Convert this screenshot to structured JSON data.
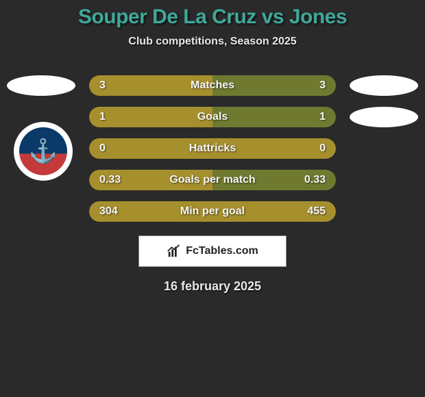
{
  "title": "Souper De La Cruz vs Jones",
  "subtitle": "Club competitions, Season 2025",
  "date": "16 february 2025",
  "brand": {
    "label": "FcTables.com"
  },
  "colors": {
    "player_left_bar": "#a68f2d",
    "player_right_bar": "#6f7a30",
    "avatar_fill": "#ffffff",
    "title_color": "#3fa89a",
    "background": "#2a2a2a"
  },
  "avatars": {
    "left_row1": true,
    "right_row1": true,
    "right_row2": true
  },
  "stats": [
    {
      "label": "Matches",
      "left_val": "3",
      "right_val": "3",
      "left_pct": 50,
      "right_pct": 50,
      "left_color": "#a68f2d",
      "right_color": "#6f7a30"
    },
    {
      "label": "Goals",
      "left_val": "1",
      "right_val": "1",
      "left_pct": 50,
      "right_pct": 50,
      "left_color": "#a68f2d",
      "right_color": "#6f7a30"
    },
    {
      "label": "Hattricks",
      "left_val": "0",
      "right_val": "0",
      "left_pct": 100,
      "right_pct": 0,
      "left_color": "#a68f2d",
      "right_color": "#6f7a30"
    },
    {
      "label": "Goals per match",
      "left_val": "0.33",
      "right_val": "0.33",
      "left_pct": 50,
      "right_pct": 50,
      "left_color": "#a68f2d",
      "right_color": "#6f7a30"
    },
    {
      "label": "Min per goal",
      "left_val": "304",
      "right_val": "455",
      "left_pct": 100,
      "right_pct": 0,
      "left_color": "#a68f2d",
      "right_color": "#6f7a30"
    }
  ]
}
